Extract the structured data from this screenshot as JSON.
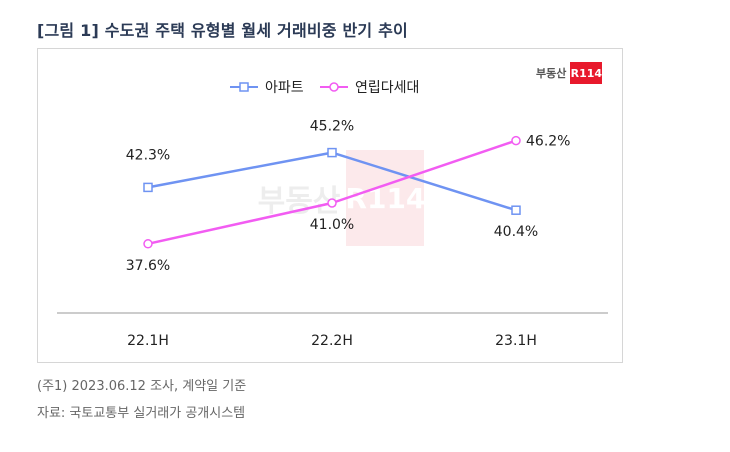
{
  "title": "[그림 1] 수도권 주택 유형별 월세 거래비중 반기 추이",
  "brand": {
    "text": "부동산",
    "badge": "R114"
  },
  "notes": {
    "line1": "(주1) 2023.06.12 조사, 계약일 기준",
    "line2": "자료: 국토교통부 실거래가 공개시스템"
  },
  "colors": {
    "apartment": "#6f93f2",
    "villa": "#f25cf2",
    "brand_red": "#e8192c",
    "axis": "#999999"
  },
  "chart_data": {
    "type": "line",
    "title": "",
    "xlabel": "",
    "ylabel": "",
    "categories": [
      "22.1H",
      "22.2H",
      "23.1H"
    ],
    "legend_position": "top",
    "grid": false,
    "ylim": [
      35,
      50
    ],
    "series": [
      {
        "name": "아파트",
        "values": [
          42.3,
          45.2,
          40.4
        ],
        "labels": [
          "42.3%",
          "45.2%",
          "40.4%"
        ],
        "marker": "square",
        "color": "#6f93f2"
      },
      {
        "name": "연립다세대",
        "values": [
          37.6,
          41.0,
          46.2
        ],
        "labels": [
          "37.6%",
          "41.0%",
          "46.2%"
        ],
        "marker": "circle",
        "color": "#f25cf2"
      }
    ]
  }
}
